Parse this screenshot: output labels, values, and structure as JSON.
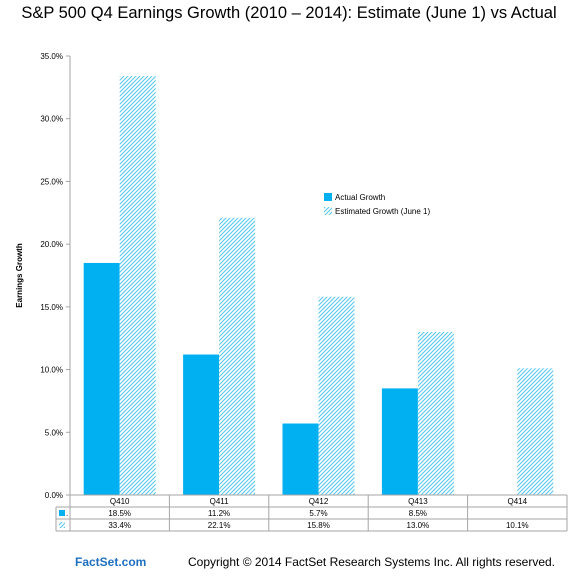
{
  "chart_data": {
    "type": "bar",
    "title": "S&P 500 Q4 Earnings Growth (2010 – 2014): Estimate (June 1) vs Actual",
    "ylabel": "Earnings Growth",
    "xlabel": "",
    "categories": [
      "Q410",
      "Q411",
      "Q412",
      "Q413",
      "Q414"
    ],
    "ylim": [
      0,
      35
    ],
    "yticks": [
      "0.0%",
      "5.0%",
      "10.0%",
      "15.0%",
      "20.0%",
      "25.0%",
      "30.0%",
      "35.0%"
    ],
    "grid": false,
    "legend_position": "center-right",
    "series": [
      {
        "name": "Actual Growth",
        "table_marker": ".",
        "values": [
          18.5,
          11.2,
          5.7,
          8.5,
          null
        ],
        "labels": [
          "18.5%",
          "11.2%",
          "5.7%",
          "8.5%",
          ""
        ],
        "color": "#00b0f0",
        "fill": "solid"
      },
      {
        "name": "Estimated Growth (June 1)",
        "table_marker": "",
        "values": [
          33.4,
          22.1,
          15.8,
          13.0,
          10.1
        ],
        "labels": [
          "33.4%",
          "22.1%",
          "15.8%",
          "13.0%",
          "10.1%"
        ],
        "color": "#5bc8ef",
        "fill": "diagonal-hatch"
      }
    ]
  },
  "footer": {
    "brand": "FactSet.com",
    "copyright": "Copyright © 2014 FactSet Research Systems Inc. All rights reserved."
  }
}
